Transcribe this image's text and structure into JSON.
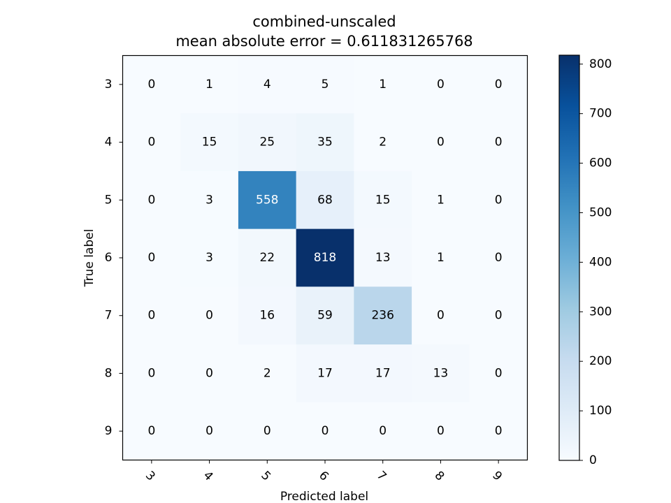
{
  "chart_data": {
    "type": "heatmap",
    "title": "combined-unscaled",
    "subtitle": "mean absolute error = 0.611831265768",
    "xlabel": "Predicted label",
    "ylabel": "True label",
    "x_categories": [
      "3",
      "4",
      "5",
      "6",
      "7",
      "8",
      "9"
    ],
    "y_categories": [
      "3",
      "4",
      "5",
      "6",
      "7",
      "8",
      "9"
    ],
    "values": [
      [
        0,
        1,
        4,
        5,
        1,
        0,
        0
      ],
      [
        0,
        15,
        25,
        35,
        2,
        0,
        0
      ],
      [
        0,
        3,
        558,
        68,
        15,
        1,
        0
      ],
      [
        0,
        3,
        22,
        818,
        13,
        1,
        0
      ],
      [
        0,
        0,
        16,
        59,
        236,
        0,
        0
      ],
      [
        0,
        0,
        2,
        17,
        17,
        13,
        0
      ],
      [
        0,
        0,
        0,
        0,
        0,
        0,
        0
      ]
    ],
    "colormap": "Blues",
    "color_min": "#f7fbff",
    "color_max": "#08306b",
    "colorbar": {
      "min": 0,
      "max": 818,
      "ticks": [
        0,
        100,
        200,
        300,
        400,
        500,
        600,
        700,
        800
      ]
    },
    "grid": false
  }
}
